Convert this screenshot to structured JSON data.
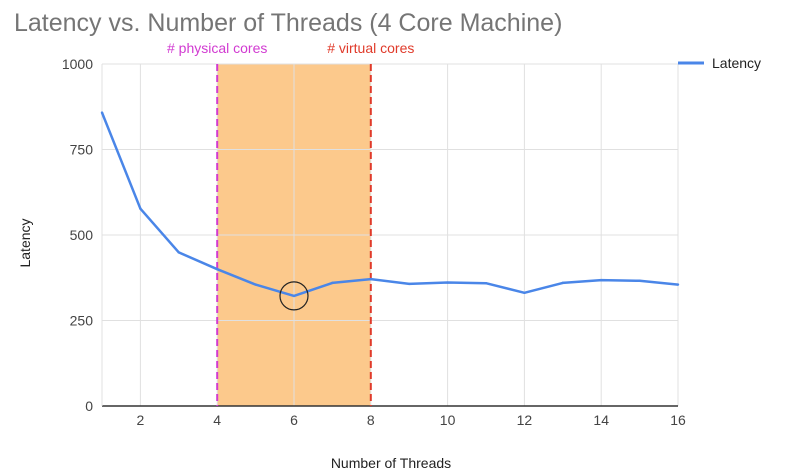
{
  "chart_data": {
    "type": "line",
    "title": "Latency vs. Number of Threads (4 Core Machine)",
    "xlabel": "Number of Threads",
    "ylabel": "Latency",
    "xlim": [
      1,
      16
    ],
    "ylim": [
      0,
      1000
    ],
    "x_ticks": [
      2,
      4,
      6,
      8,
      10,
      12,
      14,
      16
    ],
    "y_ticks": [
      0,
      250,
      500,
      750,
      1000
    ],
    "x_tick_labels": [
      "2",
      "4",
      "6",
      "8",
      "10",
      "12",
      "14",
      "16"
    ],
    "y_tick_labels": [
      "0",
      "250",
      "500",
      "750",
      "1000"
    ],
    "grid": true,
    "legend_position": "top-right",
    "series": [
      {
        "name": "Latency",
        "color": "#4a86e8",
        "x": [
          1,
          2,
          3,
          4,
          5,
          6,
          7,
          8,
          9,
          10,
          11,
          12,
          13,
          14,
          15,
          16
        ],
        "y": [
          858,
          577,
          449,
          400,
          355,
          322,
          360,
          371,
          357,
          361,
          359,
          331,
          360,
          368,
          366,
          355
        ]
      }
    ],
    "highlight_band": {
      "x_start": 4,
      "x_end": 8,
      "color": "#fcc98c"
    },
    "annotations": [
      {
        "text": "# physical cores",
        "x": 4,
        "color": "#d13ad1"
      },
      {
        "text": "# virtual cores",
        "x": 8,
        "color": "#e03a2a"
      }
    ],
    "marker": {
      "x": 6,
      "y": 322,
      "shape": "circle"
    }
  }
}
